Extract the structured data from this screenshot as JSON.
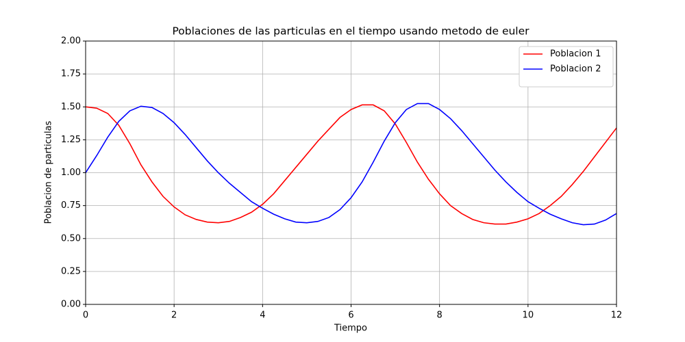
{
  "chart_data": {
    "type": "line",
    "title": "Poblaciones de las particulas en el tiempo usando metodo de euler",
    "xlabel": "Tiempo",
    "ylabel": "Poblacion de particulas",
    "x": [
      0,
      0.25,
      0.5,
      0.75,
      1,
      1.25,
      1.5,
      1.75,
      2,
      2.25,
      2.5,
      2.75,
      3,
      3.25,
      3.5,
      3.75,
      4,
      4.25,
      4.5,
      4.75,
      5,
      5.25,
      5.5,
      5.75,
      6,
      6.25,
      6.5,
      6.75,
      7,
      7.25,
      7.5,
      7.75,
      8,
      8.25,
      8.5,
      8.75,
      9,
      9.25,
      9.5,
      9.75,
      10,
      10.25,
      10.5,
      10.75,
      11,
      11.25,
      11.5,
      11.75,
      12
    ],
    "series": [
      {
        "name": "Poblacion 1",
        "color": "#ff0000",
        "values": [
          1.5,
          1.49,
          1.45,
          1.36,
          1.22,
          1.06,
          0.93,
          0.82,
          0.74,
          0.68,
          0.645,
          0.625,
          0.62,
          0.63,
          0.66,
          0.7,
          0.76,
          0.84,
          0.94,
          1.04,
          1.14,
          1.24,
          1.33,
          1.42,
          1.48,
          1.515,
          1.515,
          1.47,
          1.37,
          1.23,
          1.08,
          0.95,
          0.84,
          0.75,
          0.69,
          0.645,
          0.62,
          0.61,
          0.61,
          0.625,
          0.65,
          0.69,
          0.75,
          0.82,
          0.91,
          1.01,
          1.12,
          1.23,
          1.34
        ]
      },
      {
        "name": "Poblacion 2",
        "color": "#0000ff",
        "values": [
          1,
          1.13,
          1.27,
          1.39,
          1.47,
          1.505,
          1.495,
          1.45,
          1.38,
          1.29,
          1.19,
          1.09,
          1,
          0.92,
          0.85,
          0.78,
          0.73,
          0.685,
          0.65,
          0.625,
          0.62,
          0.63,
          0.66,
          0.72,
          0.81,
          0.93,
          1.08,
          1.24,
          1.38,
          1.48,
          1.525,
          1.525,
          1.48,
          1.41,
          1.32,
          1.22,
          1.12,
          1.02,
          0.93,
          0.85,
          0.78,
          0.73,
          0.685,
          0.65,
          0.62,
          0.605,
          0.61,
          0.64,
          0.69
        ]
      }
    ],
    "xlim": [
      0,
      12
    ],
    "xticks": [
      0,
      2,
      4,
      6,
      8,
      10,
      12
    ],
    "ylim": [
      0,
      2
    ],
    "yticks": [
      {
        "value": 0,
        "label": "0.00"
      },
      {
        "value": 0.25,
        "label": "0.25"
      },
      {
        "value": 0.5,
        "label": "0.50"
      },
      {
        "value": 0.75,
        "label": "0.75"
      },
      {
        "value": 1,
        "label": "1.00"
      },
      {
        "value": 1.25,
        "label": "1.25"
      },
      {
        "value": 1.5,
        "label": "1.50"
      },
      {
        "value": 1.75,
        "label": "1.75"
      },
      {
        "value": 2,
        "label": "2.00"
      }
    ],
    "grid": true,
    "legend": "upper-right"
  }
}
